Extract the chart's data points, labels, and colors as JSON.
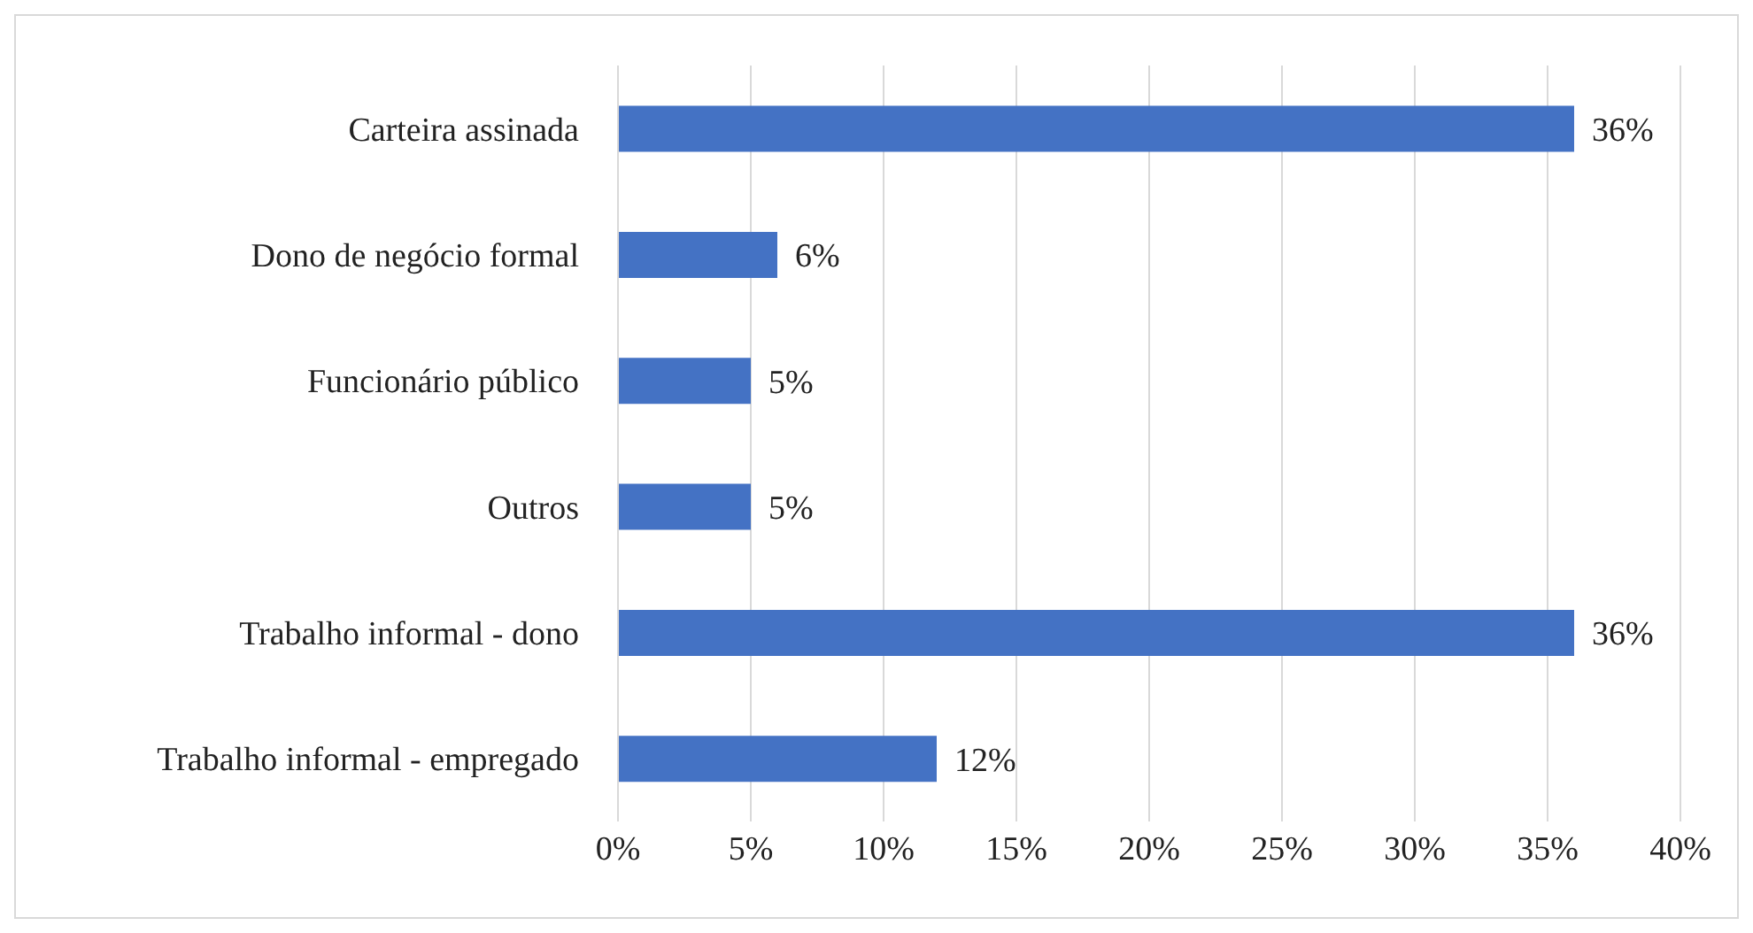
{
  "chart_data": {
    "type": "bar",
    "orientation": "horizontal",
    "categories": [
      "Carteira assinada",
      "Dono de negócio formal",
      "Funcionário público",
      "Outros",
      "Trabalho informal - dono",
      "Trabalho informal - empregado"
    ],
    "values": [
      36,
      6,
      5,
      5,
      36,
      12
    ],
    "value_labels": [
      "36%",
      "6%",
      "5%",
      "5%",
      "36%",
      "12%"
    ],
    "color": "#4472c4",
    "xlim": [
      0,
      40
    ],
    "xticks": [
      {
        "value": 0,
        "label": "0%"
      },
      {
        "value": 5,
        "label": "5%"
      },
      {
        "value": 10,
        "label": "10%"
      },
      {
        "value": 15,
        "label": "15%"
      },
      {
        "value": 20,
        "label": "20%"
      },
      {
        "value": 25,
        "label": "25%"
      },
      {
        "value": 30,
        "label": "30%"
      },
      {
        "value": 35,
        "label": "35%"
      },
      {
        "value": 40,
        "label": "40%"
      }
    ],
    "grid": "x"
  }
}
